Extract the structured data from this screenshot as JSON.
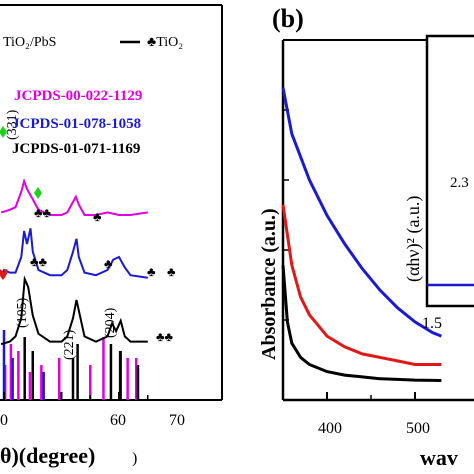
{
  "panels": {
    "a": {
      "legend_entries": [
        "TiO₂/PbS",
        "♣TiO₂"
      ],
      "references": [
        {
          "label": "JCPDS-00-022-1129",
          "color": "#e000e0"
        },
        {
          "label": "JCPDS-01-078-1058",
          "color": "#1a1ad0"
        },
        {
          "label": "JCPDS-01-071-1169",
          "color": "#000000"
        }
      ],
      "xlabel_visible": "θ)(degree)",
      "xticks": [
        "0",
        "60",
        "70"
      ],
      "peak_labels": [
        "(331)",
        "(105)",
        "(221)",
        "(204)"
      ],
      "colors": {
        "magenta": "#e000e0",
        "blue": "#1a1ad0",
        "black": "#000000",
        "green_marker": "#19d219",
        "red_marker": "#e01818"
      }
    },
    "b": {
      "panel_label": "(b)",
      "ylabel": "Absorbance (a.u.)",
      "xlabel_visible": "wav",
      "xticks": [
        "400",
        "500"
      ],
      "inset": {
        "ylabel": "(αhν)² (a.u.)",
        "xtick": "1.5",
        "annotation": "2.3"
      }
    }
  },
  "chart_data": [
    {
      "type": "line",
      "panel": "a",
      "xlabel": "θ)(degree)",
      "xlim": [
        49.5,
        75.5
      ],
      "series": [
        {
          "name": "JCPDS-00-022-1129",
          "color": "#e000e0",
          "x": [
            49.5,
            51,
            52,
            53,
            53.5,
            54,
            55,
            56,
            58,
            60,
            61,
            62,
            62.5,
            63,
            64,
            66,
            68,
            70,
            72,
            75
          ],
          "y": [
            0.6,
            0.7,
            0.8,
            1.4,
            1.8,
            1.5,
            1.1,
            0.7,
            0.5,
            0.5,
            0.6,
            1.0,
            1.2,
            0.9,
            0.5,
            0.5,
            0.6,
            0.5,
            0.5,
            0.6
          ]
        },
        {
          "name": "TiO₂/PbS",
          "color": "#1a1ad0",
          "x": [
            49.5,
            50,
            51,
            52,
            53,
            53.5,
            54,
            54.6,
            55,
            56,
            58,
            60,
            61,
            62,
            62.6,
            63,
            64,
            66,
            68,
            69,
            70,
            71,
            72,
            75
          ],
          "y": [
            0.3,
            0.5,
            0.4,
            0.4,
            1.0,
            2.0,
            1.5,
            2.1,
            1.2,
            0.5,
            0.3,
            0.3,
            0.5,
            1.2,
            1.7,
            1.0,
            0.4,
            0.3,
            0.5,
            0.9,
            1.0,
            0.6,
            0.3,
            0.2
          ]
        },
        {
          "name": "♣TiO₂",
          "color": "#000000",
          "x": [
            49.5,
            51,
            52,
            53,
            53.6,
            54.2,
            55,
            56,
            58,
            60,
            61,
            62,
            62.6,
            63.3,
            64,
            66,
            68,
            68.8,
            69.5,
            70.3,
            71,
            72,
            75
          ],
          "y": [
            0.3,
            0.4,
            0.6,
            1.3,
            2.8,
            2.5,
            1.4,
            0.7,
            0.4,
            0.4,
            0.6,
            1.3,
            2.0,
            1.3,
            0.6,
            0.4,
            0.6,
            1.1,
            0.8,
            1.2,
            0.6,
            0.4,
            0.4
          ]
        }
      ],
      "reference_lines": [
        {
          "name": "JCPDS-00-022-1129",
          "color": "#e000e0",
          "positions": [
            50.2,
            51.2,
            52.5,
            54.5,
            56.5,
            59.6,
            65.0,
            67.3,
            71.5,
            73.0
          ],
          "heights": [
            0.5,
            0.8,
            0.7,
            0.4,
            0.5,
            0.6,
            0.5,
            0.9,
            0.6,
            0.6
          ]
        },
        {
          "name": "JCPDS-01-078-1058",
          "color": "#1a1ad0",
          "positions": [
            50.0,
            51.5,
            56.9,
            70.3
          ],
          "heights": [
            1.0,
            0.6,
            0.4,
            0.7
          ]
        },
        {
          "name": "JCPDS-01-071-1169",
          "color": "#000000",
          "positions": [
            53.6,
            55.0,
            62.0,
            62.8,
            68.6,
            70.2,
            73.3
          ],
          "heights": [
            0.9,
            0.7,
            0.6,
            0.8,
            0.8,
            0.7,
            0.5
          ]
        }
      ]
    },
    {
      "type": "line",
      "panel": "b",
      "ylabel": "Absorbance (a.u.)",
      "xlim": [
        350,
        530
      ],
      "series": [
        {
          "color": "#1a1ad0",
          "x": [
            350,
            360,
            380,
            400,
            420,
            440,
            460,
            480,
            500,
            520,
            530
          ],
          "y": [
            0.88,
            0.75,
            0.62,
            0.52,
            0.44,
            0.37,
            0.31,
            0.26,
            0.22,
            0.19,
            0.18
          ]
        },
        {
          "color": "#e01818",
          "x": [
            350,
            360,
            370,
            380,
            400,
            420,
            440,
            460,
            480,
            500,
            520,
            530
          ],
          "y": [
            0.55,
            0.38,
            0.29,
            0.24,
            0.18,
            0.15,
            0.13,
            0.12,
            0.11,
            0.1,
            0.1,
            0.1
          ]
        },
        {
          "color": "#000000",
          "x": [
            350,
            355,
            360,
            370,
            380,
            400,
            420,
            440,
            460,
            480,
            500,
            530
          ],
          "y": [
            0.38,
            0.22,
            0.16,
            0.12,
            0.1,
            0.08,
            0.07,
            0.065,
            0.06,
            0.058,
            0.056,
            0.055
          ]
        }
      ]
    }
  ]
}
